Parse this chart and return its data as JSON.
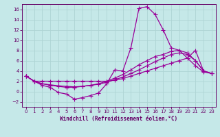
{
  "xlabel": "Windchill (Refroidissement éolien,°C)",
  "xlim": [
    -0.5,
    23.5
  ],
  "ylim": [
    -3,
    17
  ],
  "xticks": [
    0,
    1,
    2,
    3,
    4,
    5,
    6,
    7,
    8,
    9,
    10,
    11,
    12,
    13,
    14,
    15,
    16,
    17,
    18,
    19,
    20,
    21,
    22,
    23
  ],
  "yticks": [
    -2,
    0,
    2,
    4,
    6,
    8,
    10,
    12,
    14,
    16
  ],
  "bg_color": "#c5e8e8",
  "grid_color": "#aed4d4",
  "line_color": "#990099",
  "line_width": 0.9,
  "marker": "+",
  "marker_size": 4.0,
  "curves": [
    [
      3.0,
      2.0,
      1.2,
      0.8,
      -0.2,
      -0.5,
      -1.5,
      -1.2,
      -0.8,
      -0.3,
      1.5,
      4.2,
      4.0,
      8.5,
      16.2,
      16.5,
      15.0,
      12.0,
      8.5,
      8.0,
      6.5,
      8.0,
      4.0,
      3.5
    ],
    [
      3.0,
      2.0,
      1.5,
      1.3,
      1.1,
      1.0,
      0.9,
      1.0,
      1.2,
      1.4,
      1.8,
      2.3,
      2.8,
      3.5,
      4.2,
      5.0,
      5.8,
      6.5,
      7.2,
      7.5,
      7.2,
      6.0,
      4.0,
      3.5
    ],
    [
      3.0,
      2.0,
      1.5,
      1.2,
      1.0,
      0.8,
      0.8,
      1.0,
      1.2,
      1.5,
      2.0,
      2.6,
      3.3,
      4.2,
      5.2,
      6.0,
      6.8,
      7.2,
      7.8,
      8.0,
      7.5,
      6.0,
      4.0,
      3.5
    ],
    [
      3.0,
      2.0,
      2.0,
      2.0,
      2.0,
      2.0,
      2.0,
      2.0,
      2.0,
      2.0,
      2.0,
      2.2,
      2.5,
      3.0,
      3.5,
      4.0,
      4.5,
      5.0,
      5.5,
      6.0,
      6.5,
      5.0,
      3.8,
      3.5
    ]
  ]
}
